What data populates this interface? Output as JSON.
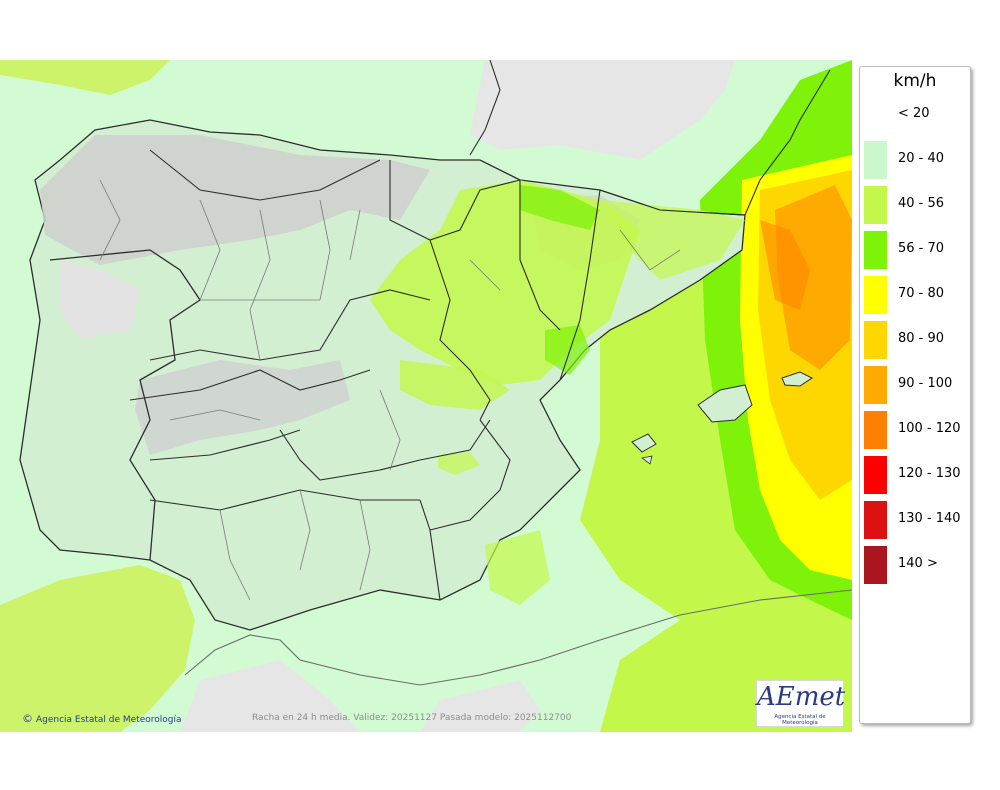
{
  "map": {
    "colors": {
      "sea_base": "#d3fbd3",
      "land_base": "#d2efd2",
      "relief_gray": "#d6d6d6",
      "border_main": "#2d2d2d",
      "border_province": "#7a7a7a"
    },
    "zones": [
      "Península Ibérica",
      "Islas Baleares",
      "Mar Mediterráneo",
      "Golfo de León",
      "Océano Atlántico",
      "Norte de África"
    ]
  },
  "legend": {
    "title": "km/h",
    "items": [
      {
        "label": "< 20",
        "color": "#ffffff"
      },
      {
        "label": "20 - 40",
        "color": "#ccf7cc"
      },
      {
        "label": "40 - 56",
        "color": "#c3f84a"
      },
      {
        "label": "56 - 70",
        "color": "#7ff20a"
      },
      {
        "label": "70 - 80",
        "color": "#ffff00"
      },
      {
        "label": "80 - 90",
        "color": "#ffd700"
      },
      {
        "label": "90 - 100",
        "color": "#ffaa00"
      },
      {
        "label": "100 - 120",
        "color": "#ff8000"
      },
      {
        "label": "120 - 130",
        "color": "#ff0000"
      },
      {
        "label": "130 - 140",
        "color": "#dd1111"
      },
      {
        "label": "140 >",
        "color": "#aa1520"
      }
    ]
  },
  "footer": {
    "credit_symbol": "©",
    "credit": "Agencia Estatal de Meteorología",
    "caption": "Racha en 24 h media. Validez: 20251127 Pasada modelo: 2025112700"
  },
  "logo": {
    "mark": "AEmet",
    "subtitle": "Agencia Estatal de Meteorología"
  }
}
